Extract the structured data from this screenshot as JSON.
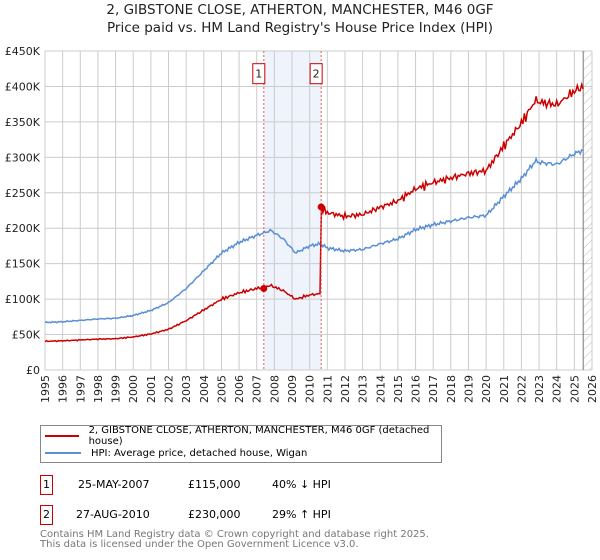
{
  "title": "2, GIBSTONE CLOSE, ATHERTON, MANCHESTER, M46 0GF",
  "subtitle": "Price paid vs. HM Land Registry's House Price Index (HPI)",
  "chart_data": {
    "type": "line",
    "title": "2, GIBSTONE CLOSE, ATHERTON, MANCHESTER, M46 0GF",
    "subtitle": "Price paid vs. HM Land Registry's House Price Index (HPI)",
    "xlim": [
      1995,
      2026
    ],
    "ylim": [
      0,
      450000
    ],
    "yticks": [
      0,
      50000,
      100000,
      150000,
      200000,
      250000,
      300000,
      350000,
      400000,
      450000
    ],
    "ytick_labels": [
      "£0",
      "£50K",
      "£100K",
      "£150K",
      "£200K",
      "£250K",
      "£300K",
      "£350K",
      "£400K",
      "£450K"
    ],
    "xticks": [
      1995,
      1996,
      1997,
      1998,
      1999,
      2000,
      2001,
      2002,
      2003,
      2004,
      2005,
      2006,
      2007,
      2008,
      2009,
      2010,
      2011,
      2012,
      2013,
      2014,
      2015,
      2016,
      2017,
      2018,
      2019,
      2020,
      2021,
      2022,
      2023,
      2024,
      2025,
      2026
    ],
    "grid": true,
    "shaded_region": [
      2007.4,
      2010.65
    ],
    "future_hatch_from": 2025.5,
    "hpi_series": {
      "name": "HPI: Average price, detached house, Wigan",
      "color": "#5b8fd4",
      "x": [
        1995,
        1996,
        1997,
        1998,
        1999,
        2000,
        2001,
        2002,
        2003,
        2004,
        2005,
        2006,
        2007,
        2007.8,
        2008.5,
        2009.2,
        2010,
        2010.6,
        2011,
        2012,
        2013,
        2014,
        2015,
        2016,
        2017,
        2018,
        2019,
        2020,
        2021,
        2022,
        2022.8,
        2023,
        2024,
        2025,
        2025.5
      ],
      "y": [
        67000,
        68000,
        70000,
        72000,
        73000,
        77000,
        84000,
        95000,
        115000,
        140000,
        165000,
        180000,
        190000,
        197000,
        185000,
        165000,
        175000,
        178000,
        172000,
        168000,
        170000,
        178000,
        185000,
        198000,
        205000,
        210000,
        215000,
        218000,
        245000,
        270000,
        295000,
        293000,
        290000,
        305000,
        310000
      ]
    },
    "price_series": {
      "name": "2, GIBSTONE CLOSE, ATHERTON, MANCHESTER, M46 0GF (detached house)",
      "color": "#cc0000",
      "factor_before": 0.605,
      "factor_after": 1.29,
      "change_at": 2010.65
    },
    "sales": [
      {
        "label": "1",
        "x": 2007.4,
        "y": 115000
      },
      {
        "label": "2",
        "x": 2010.65,
        "y": 230000
      }
    ]
  },
  "legend": {
    "price": "2, GIBSTONE CLOSE, ATHERTON, MANCHESTER, M46 0GF (detached house)",
    "hpi": "HPI: Average price, detached house, Wigan"
  },
  "transactions": [
    {
      "num": "1",
      "date": "25-MAY-2007",
      "price": "£115,000",
      "hpi": "40% ↓ HPI"
    },
    {
      "num": "2",
      "date": "27-AUG-2010",
      "price": "£230,000",
      "hpi": "29% ↑ HPI"
    }
  ],
  "footer": {
    "line1": "Contains HM Land Registry data © Crown copyright and database right 2025.",
    "line2": "This data is licensed under the Open Government Licence v3.0."
  }
}
